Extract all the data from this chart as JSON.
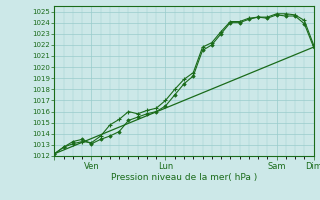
{
  "title": "",
  "xlabel": "Pression niveau de la mer( hPa )",
  "ylabel": "",
  "bg_color": "#cce8e8",
  "grid_color": "#99cccc",
  "line_color": "#1a6b1a",
  "ylim": [
    1012,
    1025.5
  ],
  "yticks": [
    1012,
    1013,
    1014,
    1015,
    1016,
    1017,
    1018,
    1019,
    1020,
    1021,
    1022,
    1023,
    1024,
    1025
  ],
  "xtick_positions": [
    0,
    24,
    72,
    144,
    168
  ],
  "xtick_labels": [
    "",
    "Ven",
    "Lun",
    "Sam",
    "Dim"
  ],
  "total_hours": 168,
  "series_plus": {
    "x": [
      0,
      6,
      12,
      18,
      24,
      30,
      36,
      42,
      48,
      54,
      60,
      66,
      72,
      78,
      84,
      90,
      96,
      102,
      108,
      114,
      120,
      126,
      132,
      138,
      144,
      150,
      156,
      162,
      168
    ],
    "y": [
      1012.2,
      1012.8,
      1013.1,
      1013.3,
      1013.2,
      1013.8,
      1014.8,
      1015.3,
      1016.0,
      1015.8,
      1016.1,
      1016.3,
      1017.0,
      1018.0,
      1018.9,
      1019.5,
      1021.8,
      1022.2,
      1023.2,
      1024.1,
      1024.1,
      1024.4,
      1024.5,
      1024.5,
      1024.8,
      1024.8,
      1024.7,
      1024.2,
      1022.0
    ]
  },
  "series_dot": {
    "x": [
      0,
      6,
      12,
      18,
      24,
      30,
      36,
      42,
      48,
      54,
      60,
      66,
      72,
      78,
      84,
      90,
      96,
      102,
      108,
      114,
      120,
      126,
      132,
      138,
      144,
      150,
      156,
      162,
      168
    ],
    "y": [
      1012.2,
      1012.8,
      1013.3,
      1013.5,
      1013.1,
      1013.5,
      1013.8,
      1014.2,
      1015.2,
      1015.5,
      1015.8,
      1016.0,
      1016.5,
      1017.5,
      1018.5,
      1019.2,
      1021.5,
      1022.0,
      1023.0,
      1024.0,
      1024.0,
      1024.3,
      1024.5,
      1024.4,
      1024.7,
      1024.6,
      1024.6,
      1023.9,
      1021.8
    ]
  },
  "series_line": {
    "x": [
      0,
      168
    ],
    "y": [
      1012.2,
      1021.8
    ]
  }
}
